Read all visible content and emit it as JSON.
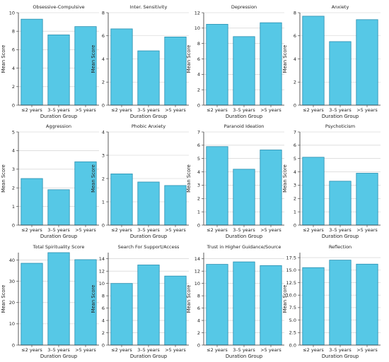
{
  "colors": {
    "bar_fill": "#56c8e6",
    "bar_stroke": "#2a8fb0",
    "grid": "#cccccc",
    "axis": "#333333"
  },
  "chart_data": [
    {
      "type": "bar",
      "title": "Obsessive-Compulsive",
      "xlabel": "Duration Group",
      "ylabel": "Mean Score",
      "categories": [
        "≤2 years",
        "3–5 years",
        ">5 years"
      ],
      "values": [
        9.3,
        7.6,
        8.5
      ],
      "ylim": [
        0,
        10
      ],
      "yticks": [
        "0",
        "2",
        "4",
        "6",
        "8",
        "10"
      ],
      "grid": true
    },
    {
      "type": "bar",
      "title": "Inter. Sensitivity",
      "xlabel": "Duration Group",
      "ylabel": "Mean Score",
      "categories": [
        "≤2 years",
        "3–5 years",
        ">5 years"
      ],
      "values": [
        6.6,
        4.7,
        5.9
      ],
      "ylim": [
        0,
        8
      ],
      "yticks": [
        "0",
        "2",
        "4",
        "6",
        "8"
      ],
      "grid": true
    },
    {
      "type": "bar",
      "title": "Depression",
      "xlabel": "Duration Group",
      "ylabel": "Mean Score",
      "categories": [
        "≤2 years",
        "3–5 years",
        ">5 years"
      ],
      "values": [
        10.5,
        8.9,
        10.7
      ],
      "ylim": [
        0,
        12
      ],
      "yticks": [
        "0",
        "2",
        "4",
        "6",
        "8",
        "10",
        "12"
      ],
      "grid": true
    },
    {
      "type": "bar",
      "title": "Anxiety",
      "xlabel": "Duration Group",
      "ylabel": "Mean Score",
      "categories": [
        "≤2 years",
        "3–5 years",
        ">5 years"
      ],
      "values": [
        7.7,
        5.5,
        7.4
      ],
      "ylim": [
        0,
        8
      ],
      "yticks": [
        "0",
        "2",
        "4",
        "6",
        "8"
      ],
      "grid": true
    },
    {
      "type": "bar",
      "title": "Aggression",
      "xlabel": "Duration Group",
      "ylabel": "Mean Score",
      "categories": [
        "≤2 years",
        "3–5 years",
        ">5 years"
      ],
      "values": [
        2.5,
        1.9,
        3.4
      ],
      "ylim": [
        0,
        5
      ],
      "yticks": [
        "0",
        "1",
        "2",
        "3",
        "4",
        "5"
      ],
      "grid": true
    },
    {
      "type": "bar",
      "title": "Phobic Anxiety",
      "xlabel": "Duration Group",
      "ylabel": "Mean Score",
      "categories": [
        "≤2 years",
        "3–5 years",
        ">5 years"
      ],
      "values": [
        2.2,
        1.85,
        1.7
      ],
      "ylim": [
        0,
        4
      ],
      "yticks": [
        "0",
        "1",
        "2",
        "3",
        "4"
      ],
      "grid": true
    },
    {
      "type": "bar",
      "title": "Paranoid Ideation",
      "xlabel": "Duration Group",
      "ylabel": "Mean Score",
      "categories": [
        "≤2 years",
        "3–5 years",
        ">5 years"
      ],
      "values": [
        5.9,
        4.2,
        5.65
      ],
      "ylim": [
        0,
        7
      ],
      "yticks": [
        "0",
        "1",
        "2",
        "3",
        "4",
        "5",
        "6",
        "7"
      ],
      "grid": true
    },
    {
      "type": "bar",
      "title": "Psychoticism",
      "xlabel": "Duration Group",
      "ylabel": "Mean Score",
      "categories": [
        "≤2 years",
        "3–5 years",
        ">5 years"
      ],
      "values": [
        5.1,
        3.3,
        3.9
      ],
      "ylim": [
        0,
        7
      ],
      "yticks": [
        "0",
        "1",
        "2",
        "3",
        "4",
        "5",
        "6",
        "7"
      ],
      "grid": true
    },
    {
      "type": "bar",
      "title": "Total Spirituality Score",
      "xlabel": "Duration Group",
      "ylabel": "Mean Score",
      "categories": [
        "≤2 years",
        "3–5 years",
        ">5 years"
      ],
      "values": [
        38.5,
        43.5,
        40.2
      ],
      "ylim": [
        0,
        43.5
      ],
      "yticks": [
        "0",
        "10",
        "20",
        "30",
        "40"
      ],
      "ytick_values": [
        0,
        10,
        20,
        30,
        40
      ],
      "grid": true
    },
    {
      "type": "bar",
      "title": "Search For Support/Access",
      "xlabel": "Duration Group",
      "ylabel": "Mean Score",
      "categories": [
        "≤2 years",
        "3–5 years",
        ">5 years"
      ],
      "values": [
        10.0,
        13.0,
        11.2
      ],
      "ylim": [
        0,
        15
      ],
      "yticks": [
        "0",
        "2",
        "4",
        "6",
        "8",
        "10",
        "12",
        "14"
      ],
      "ytick_values": [
        0,
        2,
        4,
        6,
        8,
        10,
        12,
        14
      ],
      "grid": true
    },
    {
      "type": "bar",
      "title": "Trust in Higher Guidance/Source",
      "xlabel": "Duration Group",
      "ylabel": "Mean Score",
      "categories": [
        "≤2 years",
        "3–5 years",
        ">5 years"
      ],
      "values": [
        13.1,
        13.5,
        12.9
      ],
      "ylim": [
        0,
        15
      ],
      "yticks": [
        "0",
        "2",
        "4",
        "6",
        "8",
        "10",
        "12",
        "14"
      ],
      "ytick_values": [
        0,
        2,
        4,
        6,
        8,
        10,
        12,
        14
      ],
      "grid": true
    },
    {
      "type": "bar",
      "title": "Reflection",
      "xlabel": "Duration Group",
      "ylabel": "Mean Score",
      "categories": [
        "≤2 years",
        "3–5 years",
        ">5 years"
      ],
      "values": [
        15.5,
        17.0,
        16.2
      ],
      "ylim": [
        0,
        18.5
      ],
      "yticks": [
        "0.0",
        "2.5",
        "5.0",
        "7.5",
        "10.0",
        "12.5",
        "15.0",
        "17.5"
      ],
      "ytick_values": [
        0,
        2.5,
        5,
        7.5,
        10,
        12.5,
        15,
        17.5
      ],
      "grid": true
    }
  ]
}
